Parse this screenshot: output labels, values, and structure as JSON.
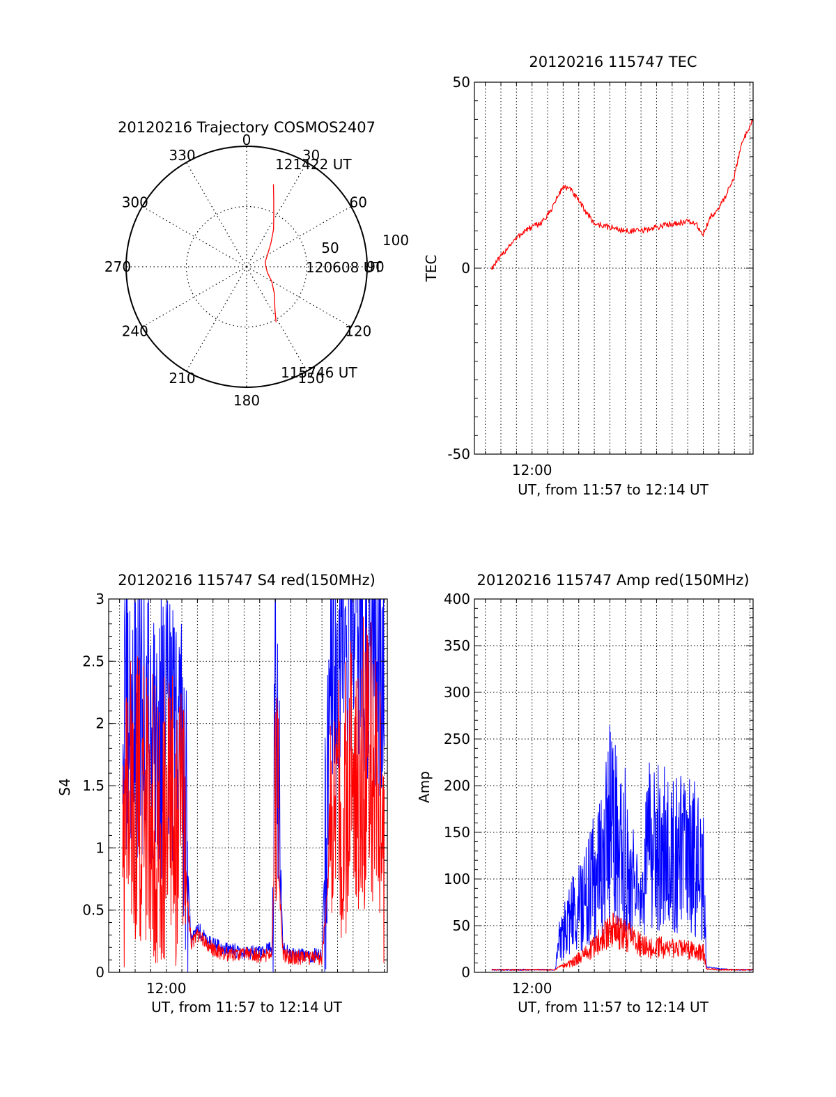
{
  "colors": {
    "red": "#ff0000",
    "blue": "#0000ff",
    "axis": "#000000",
    "grid": "#000000"
  },
  "chart_data": [
    {
      "id": "trajectory",
      "type": "scatter",
      "title": "20120216 Trajectory COSMOS2407",
      "projection": "polar",
      "azimuth_ticks": [
        "0",
        "30",
        "60",
        "90",
        "120",
        "150",
        "180",
        "210",
        "240",
        "270",
        "300",
        "330"
      ],
      "radial_ticks": [
        "50",
        "100"
      ],
      "rlim": [
        0,
        100
      ],
      "grid": true,
      "series": [
        {
          "color": "#ff0000",
          "points_az_el": [
            [
              18,
              28
            ],
            [
              22,
              40
            ],
            [
              28,
              52
            ],
            [
              36,
              62
            ],
            [
              46,
              72
            ],
            [
              60,
              80
            ],
            [
              75,
              84
            ],
            [
              90,
              84
            ],
            [
              106,
              82
            ],
            [
              120,
              76
            ],
            [
              134,
              68
            ],
            [
              146,
              58
            ],
            [
              152,
              48
            ]
          ]
        }
      ],
      "annotations": [
        "121422 UT",
        "120608 UT",
        "115746 UT"
      ]
    },
    {
      "id": "tec",
      "type": "line",
      "title": "20120216 115747 TEC",
      "ylabel": "TEC",
      "xlabel": "UT, from 11:57 to 12:14 UT",
      "x_tick_labels": [
        "12:00"
      ],
      "y_tick_labels": [
        "50",
        "0",
        "-50"
      ],
      "xlim_minutes": [
        -3.7,
        14.2
      ],
      "ylim": [
        -50,
        50
      ],
      "grid": true,
      "series": [
        {
          "color": "#ff0000",
          "x_minutes": [
            -2.6,
            -2.0,
            -1.5,
            -1.0,
            -0.5,
            0.0,
            0.5,
            1.0,
            1.5,
            2.0,
            2.5,
            3.0,
            3.5,
            4.0,
            5.0,
            6.0,
            7.0,
            8.0,
            9.0,
            10.0,
            10.5,
            11.0,
            11.5,
            12.0,
            12.5,
            13.0,
            13.5,
            14.2
          ],
          "y": [
            0.0,
            3.0,
            6.0,
            8.0,
            10.0,
            11.0,
            12.0,
            14.0,
            18.0,
            22.0,
            21.0,
            18.0,
            15.0,
            12.0,
            11.0,
            10.0,
            10.0,
            11.0,
            12.0,
            12.5,
            12.0,
            9.0,
            14.0,
            16.0,
            20.0,
            25.0,
            34.0,
            40.0
          ]
        }
      ]
    },
    {
      "id": "s4",
      "type": "line",
      "title": "20120216 115747 S4 red(150MHz)",
      "ylabel": "S4",
      "xlabel": "UT, from 11:57 to 12:14 UT",
      "x_tick_labels": [
        "12:00"
      ],
      "y_tick_labels": [
        "0",
        "0.5",
        "1",
        "1.5",
        "2",
        "2.5",
        "3"
      ],
      "xlim_minutes": [
        -3.7,
        14.2
      ],
      "ylim": [
        0,
        3
      ],
      "grid": true,
      "series": [
        {
          "color": "#0000ff",
          "x_minutes": [
            -2.8,
            -2.0,
            -1.0,
            0.0,
            1.0,
            1.6,
            2.0,
            3.0,
            4.0,
            5.0,
            6.0,
            6.8,
            7.0,
            7.5,
            8.0,
            9.0,
            10.0,
            10.5,
            11.0,
            12.0,
            13.0,
            14.0
          ],
          "y": [
            1.8,
            2.1,
            2.0,
            1.9,
            1.9,
            0.25,
            0.35,
            0.22,
            0.18,
            0.16,
            0.15,
            0.2,
            2.5,
            0.18,
            0.15,
            0.13,
            0.14,
            2.2,
            2.4,
            2.8,
            2.7,
            2.5
          ]
        },
        {
          "color": "#ff0000",
          "x_minutes": [
            -2.8,
            -2.0,
            -1.0,
            0.0,
            1.0,
            1.6,
            2.0,
            3.0,
            4.0,
            5.0,
            6.0,
            6.8,
            7.0,
            7.5,
            8.0,
            9.0,
            10.0,
            10.5,
            11.0,
            12.0,
            13.0,
            14.0
          ],
          "y": [
            1.2,
            1.4,
            1.3,
            1.2,
            1.2,
            0.22,
            0.3,
            0.18,
            0.14,
            0.15,
            0.13,
            0.15,
            1.3,
            0.14,
            0.12,
            0.11,
            0.12,
            0.9,
            1.2,
            1.6,
            1.7,
            1.2
          ]
        }
      ]
    },
    {
      "id": "amp",
      "type": "line",
      "title": "20120216 115747 Amp red(150MHz)",
      "ylabel": "Amp",
      "xlabel": "UT, from 11:57 to 12:14 UT",
      "x_tick_labels": [
        "12:00"
      ],
      "y_tick_labels": [
        "0",
        "50",
        "100",
        "150",
        "200",
        "250",
        "300",
        "350",
        "400"
      ],
      "xlim_minutes": [
        -3.7,
        14.2
      ],
      "ylim": [
        0,
        400
      ],
      "grid": true,
      "series": [
        {
          "color": "#0000ff",
          "x_minutes": [
            -2.6,
            0.0,
            1.5,
            1.7,
            2.5,
            3.5,
            4.5,
            5.0,
            6.0,
            7.0,
            7.5,
            8.0,
            9.0,
            10.0,
            11.0,
            11.2,
            12.0,
            13.0,
            14.2
          ],
          "y": [
            2,
            2,
            2,
            30,
            60,
            80,
            120,
            160,
            130,
            60,
            140,
            150,
            120,
            130,
            110,
            5,
            3,
            2,
            2
          ]
        },
        {
          "color": "#ff0000",
          "x_minutes": [
            -2.6,
            0.0,
            1.5,
            1.7,
            2.5,
            3.5,
            4.5,
            5.0,
            6.0,
            7.0,
            7.5,
            8.0,
            9.0,
            10.0,
            11.0,
            11.2,
            12.0,
            13.0,
            14.2
          ],
          "y": [
            2,
            2,
            2,
            5,
            10,
            20,
            35,
            45,
            40,
            30,
            25,
            28,
            25,
            25,
            22,
            3,
            2,
            2,
            2
          ]
        }
      ]
    }
  ]
}
